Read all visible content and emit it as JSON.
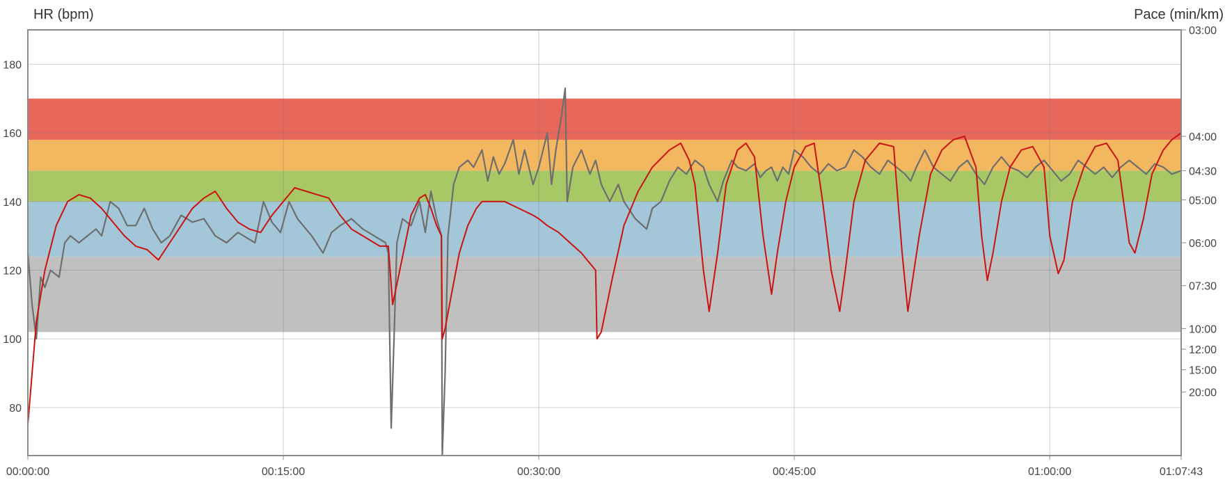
{
  "chart_data": {
    "type": "line",
    "title": "",
    "xlabel": "",
    "ylabel_left": "HR (bpm)",
    "ylabel_right": "Pace (min/km)",
    "xlim_seconds": [
      0,
      4063
    ],
    "ylim_left": [
      66,
      190
    ],
    "x_tick_labels": [
      "00:00:00",
      "00:15:00",
      "00:30:00",
      "00:45:00",
      "01:00:00",
      "01:07:43"
    ],
    "x_tick_seconds": [
      0,
      900,
      1800,
      2700,
      3600,
      4063
    ],
    "y_left_ticks": [
      80,
      100,
      120,
      140,
      160,
      180
    ],
    "y_right_ticks": [
      {
        "label": "03:00",
        "hr_equiv": 190
      },
      {
        "label": "04:00",
        "hr_equiv": 159
      },
      {
        "label": "04:30",
        "hr_equiv": 149
      },
      {
        "label": "05:00",
        "hr_equiv": 140.5
      },
      {
        "label": "06:00",
        "hr_equiv": 128
      },
      {
        "label": "07:30",
        "hr_equiv": 115.5
      },
      {
        "label": "10:00",
        "hr_equiv": 103
      },
      {
        "label": "12:00",
        "hr_equiv": 97
      },
      {
        "label": "15:00",
        "hr_equiv": 91
      },
      {
        "label": "20:00",
        "hr_equiv": 84.5
      }
    ],
    "grid": true,
    "zones": [
      {
        "from": 102,
        "to": 124,
        "color": "#c0c0c0"
      },
      {
        "from": 124,
        "to": 140,
        "color": "#a3c6d8"
      },
      {
        "from": 140,
        "to": 149,
        "color": "#a8c765"
      },
      {
        "from": 149,
        "to": 158,
        "color": "#f2b75f"
      },
      {
        "from": 158,
        "to": 170,
        "color": "#e7675a"
      }
    ],
    "series": [
      {
        "color": "#cc1111",
        "points": [
          [
            0,
            75
          ],
          [
            30,
            105
          ],
          [
            60,
            120
          ],
          [
            100,
            133
          ],
          [
            140,
            140
          ],
          [
            180,
            142
          ],
          [
            220,
            141
          ],
          [
            260,
            138
          ],
          [
            300,
            134
          ],
          [
            340,
            130
          ],
          [
            380,
            127
          ],
          [
            420,
            126
          ],
          [
            460,
            123
          ],
          [
            500,
            128
          ],
          [
            540,
            133
          ],
          [
            580,
            138
          ],
          [
            620,
            141
          ],
          [
            660,
            143
          ],
          [
            700,
            138
          ],
          [
            740,
            134
          ],
          [
            780,
            132
          ],
          [
            820,
            131
          ],
          [
            860,
            136
          ],
          [
            900,
            140
          ],
          [
            940,
            144
          ],
          [
            980,
            143
          ],
          [
            1020,
            142
          ],
          [
            1060,
            141
          ],
          [
            1100,
            136
          ],
          [
            1140,
            132
          ],
          [
            1180,
            130
          ],
          [
            1200,
            129
          ],
          [
            1220,
            128
          ],
          [
            1240,
            127
          ],
          [
            1270,
            127
          ],
          [
            1285,
            110
          ],
          [
            1310,
            120
          ],
          [
            1350,
            136
          ],
          [
            1380,
            141
          ],
          [
            1400,
            142
          ],
          [
            1420,
            138
          ],
          [
            1440,
            133
          ],
          [
            1457,
            130
          ],
          [
            1460,
            100
          ],
          [
            1470,
            103
          ],
          [
            1490,
            112
          ],
          [
            1520,
            125
          ],
          [
            1550,
            133
          ],
          [
            1580,
            138
          ],
          [
            1600,
            140
          ],
          [
            1640,
            140
          ],
          [
            1680,
            140
          ],
          [
            1730,
            138
          ],
          [
            1780,
            136
          ],
          [
            1800,
            135
          ],
          [
            1830,
            133
          ],
          [
            1870,
            131
          ],
          [
            1910,
            128
          ],
          [
            1950,
            125
          ],
          [
            1980,
            122
          ],
          [
            2000,
            120
          ],
          [
            2005,
            100
          ],
          [
            2020,
            102
          ],
          [
            2060,
            118
          ],
          [
            2100,
            133
          ],
          [
            2150,
            143
          ],
          [
            2200,
            150
          ],
          [
            2260,
            155
          ],
          [
            2300,
            157
          ],
          [
            2330,
            152
          ],
          [
            2350,
            145
          ],
          [
            2380,
            120
          ],
          [
            2400,
            108
          ],
          [
            2430,
            125
          ],
          [
            2460,
            145
          ],
          [
            2500,
            155
          ],
          [
            2530,
            157
          ],
          [
            2560,
            153
          ],
          [
            2590,
            130
          ],
          [
            2620,
            113
          ],
          [
            2640,
            125
          ],
          [
            2670,
            140
          ],
          [
            2700,
            150
          ],
          [
            2740,
            156
          ],
          [
            2770,
            157
          ],
          [
            2800,
            140
          ],
          [
            2830,
            120
          ],
          [
            2860,
            108
          ],
          [
            2880,
            120
          ],
          [
            2910,
            140
          ],
          [
            2950,
            152
          ],
          [
            3000,
            157
          ],
          [
            3050,
            156
          ],
          [
            3080,
            125
          ],
          [
            3100,
            108
          ],
          [
            3140,
            130
          ],
          [
            3180,
            148
          ],
          [
            3220,
            155
          ],
          [
            3260,
            158
          ],
          [
            3300,
            159
          ],
          [
            3340,
            150
          ],
          [
            3360,
            130
          ],
          [
            3380,
            117
          ],
          [
            3400,
            125
          ],
          [
            3430,
            140
          ],
          [
            3460,
            150
          ],
          [
            3500,
            155
          ],
          [
            3540,
            156
          ],
          [
            3580,
            150
          ],
          [
            3600,
            130
          ],
          [
            3630,
            119
          ],
          [
            3650,
            123
          ],
          [
            3680,
            140
          ],
          [
            3720,
            150
          ],
          [
            3760,
            156
          ],
          [
            3800,
            157
          ],
          [
            3840,
            152
          ],
          [
            3860,
            140
          ],
          [
            3880,
            128
          ],
          [
            3900,
            125
          ],
          [
            3930,
            135
          ],
          [
            3960,
            148
          ],
          [
            4000,
            155
          ],
          [
            4030,
            158
          ],
          [
            4063,
            160
          ]
        ]
      },
      {
        "color": "#6e6e6e",
        "points": [
          [
            0,
            125
          ],
          [
            15,
            110
          ],
          [
            30,
            100
          ],
          [
            45,
            118
          ],
          [
            60,
            115
          ],
          [
            80,
            120
          ],
          [
            110,
            118
          ],
          [
            130,
            128
          ],
          [
            150,
            130
          ],
          [
            180,
            128
          ],
          [
            210,
            130
          ],
          [
            240,
            132
          ],
          [
            260,
            130
          ],
          [
            290,
            140
          ],
          [
            320,
            138
          ],
          [
            350,
            133
          ],
          [
            380,
            133
          ],
          [
            410,
            138
          ],
          [
            440,
            132
          ],
          [
            470,
            128
          ],
          [
            500,
            130
          ],
          [
            540,
            136
          ],
          [
            580,
            134
          ],
          [
            620,
            135
          ],
          [
            660,
            130
          ],
          [
            700,
            128
          ],
          [
            740,
            131
          ],
          [
            780,
            129
          ],
          [
            800,
            128
          ],
          [
            830,
            140
          ],
          [
            860,
            134
          ],
          [
            890,
            131
          ],
          [
            920,
            140
          ],
          [
            950,
            135
          ],
          [
            980,
            132
          ],
          [
            1000,
            130
          ],
          [
            1040,
            125
          ],
          [
            1070,
            131
          ],
          [
            1100,
            133
          ],
          [
            1140,
            135
          ],
          [
            1180,
            132
          ],
          [
            1220,
            130
          ],
          [
            1260,
            128
          ],
          [
            1270,
            125
          ],
          [
            1280,
            74
          ],
          [
            1290,
            100
          ],
          [
            1300,
            128
          ],
          [
            1320,
            135
          ],
          [
            1350,
            133
          ],
          [
            1380,
            140
          ],
          [
            1400,
            131
          ],
          [
            1420,
            143
          ],
          [
            1440,
            135
          ],
          [
            1457,
            130
          ],
          [
            1460,
            66
          ],
          [
            1470,
            90
          ],
          [
            1480,
            130
          ],
          [
            1500,
            145
          ],
          [
            1520,
            150
          ],
          [
            1550,
            152
          ],
          [
            1570,
            150
          ],
          [
            1600,
            155
          ],
          [
            1620,
            146
          ],
          [
            1640,
            153
          ],
          [
            1660,
            148
          ],
          [
            1680,
            151
          ],
          [
            1710,
            158
          ],
          [
            1730,
            148
          ],
          [
            1750,
            155
          ],
          [
            1780,
            145
          ],
          [
            1800,
            150
          ],
          [
            1830,
            160
          ],
          [
            1845,
            145
          ],
          [
            1860,
            155
          ],
          [
            1880,
            165
          ],
          [
            1893,
            173
          ],
          [
            1900,
            140
          ],
          [
            1920,
            150
          ],
          [
            1950,
            155
          ],
          [
            1980,
            148
          ],
          [
            2000,
            152
          ],
          [
            2020,
            145
          ],
          [
            2050,
            140
          ],
          [
            2080,
            145
          ],
          [
            2100,
            140
          ],
          [
            2140,
            135
          ],
          [
            2180,
            132
          ],
          [
            2200,
            138
          ],
          [
            2230,
            140
          ],
          [
            2260,
            146
          ],
          [
            2290,
            150
          ],
          [
            2320,
            148
          ],
          [
            2350,
            152
          ],
          [
            2380,
            150
          ],
          [
            2400,
            145
          ],
          [
            2430,
            140
          ],
          [
            2450,
            146
          ],
          [
            2480,
            152
          ],
          [
            2500,
            150
          ],
          [
            2530,
            149
          ],
          [
            2560,
            151
          ],
          [
            2580,
            147
          ],
          [
            2600,
            149
          ],
          [
            2620,
            150
          ],
          [
            2640,
            146
          ],
          [
            2660,
            150
          ],
          [
            2680,
            148
          ],
          [
            2700,
            155
          ],
          [
            2730,
            153
          ],
          [
            2760,
            150
          ],
          [
            2790,
            148
          ],
          [
            2820,
            151
          ],
          [
            2850,
            149
          ],
          [
            2880,
            150
          ],
          [
            2910,
            155
          ],
          [
            2940,
            153
          ],
          [
            2970,
            150
          ],
          [
            3000,
            148
          ],
          [
            3030,
            152
          ],
          [
            3060,
            150
          ],
          [
            3090,
            148
          ],
          [
            3110,
            146
          ],
          [
            3130,
            150
          ],
          [
            3160,
            155
          ],
          [
            3190,
            150
          ],
          [
            3220,
            148
          ],
          [
            3250,
            146
          ],
          [
            3280,
            150
          ],
          [
            3310,
            152
          ],
          [
            3340,
            148
          ],
          [
            3370,
            145
          ],
          [
            3400,
            150
          ],
          [
            3430,
            153
          ],
          [
            3460,
            150
          ],
          [
            3490,
            149
          ],
          [
            3520,
            147
          ],
          [
            3550,
            150
          ],
          [
            3580,
            152
          ],
          [
            3610,
            149
          ],
          [
            3640,
            146
          ],
          [
            3670,
            148
          ],
          [
            3700,
            152
          ],
          [
            3730,
            150
          ],
          [
            3760,
            148
          ],
          [
            3790,
            150
          ],
          [
            3820,
            147
          ],
          [
            3850,
            150
          ],
          [
            3880,
            152
          ],
          [
            3910,
            150
          ],
          [
            3940,
            148
          ],
          [
            3970,
            151
          ],
          [
            4000,
            150
          ],
          [
            4030,
            148
          ],
          [
            4063,
            149
          ]
        ]
      }
    ]
  }
}
